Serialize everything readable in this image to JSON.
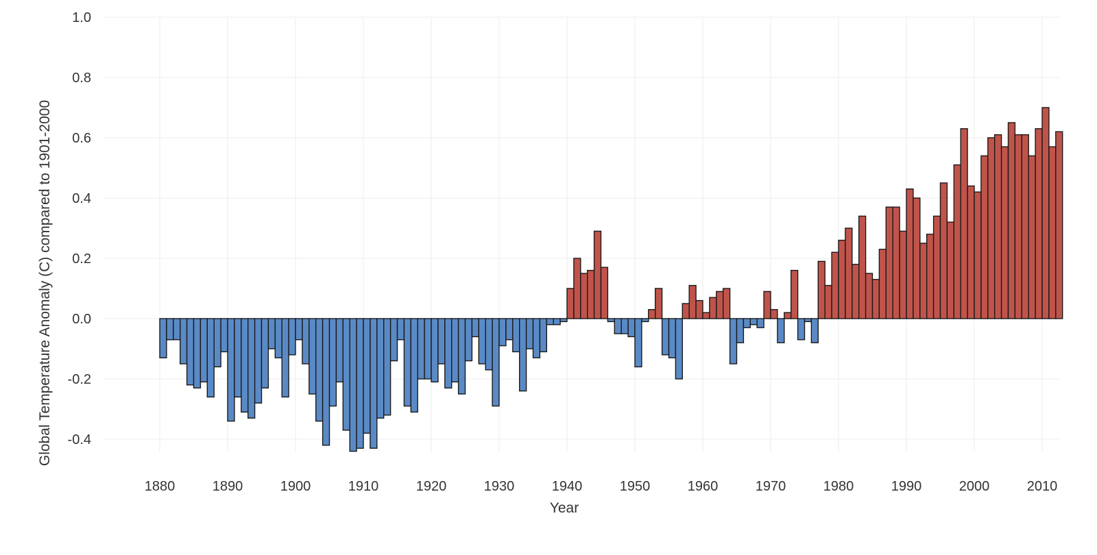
{
  "chart_data": {
    "type": "bar",
    "title": "",
    "xlabel": "Year",
    "ylabel": "Global Temperature Anomaly (C) compared to 1901-2000",
    "xlim": [
      1880,
      2012
    ],
    "ylim": [
      -0.5,
      1.0
    ],
    "grid": true,
    "legend": "none",
    "x_ticks": [
      "1880",
      "1890",
      "1900",
      "1910",
      "1920",
      "1930",
      "1940",
      "1950",
      "1960",
      "1970",
      "1980",
      "1990",
      "2000",
      "2010"
    ],
    "y_ticks": [
      "-0.4",
      "-0.2",
      "0.0",
      "0.2",
      "0.4",
      "0.6",
      "0.8",
      "1.0"
    ],
    "colors": {
      "positive": "#c0544b",
      "negative": "#5a8ac6"
    },
    "x": [
      1880,
      1881,
      1882,
      1883,
      1884,
      1885,
      1886,
      1887,
      1888,
      1889,
      1890,
      1891,
      1892,
      1893,
      1894,
      1895,
      1896,
      1897,
      1898,
      1899,
      1900,
      1901,
      1902,
      1903,
      1904,
      1905,
      1906,
      1907,
      1908,
      1909,
      1910,
      1911,
      1912,
      1913,
      1914,
      1915,
      1916,
      1917,
      1918,
      1919,
      1920,
      1921,
      1922,
      1923,
      1924,
      1925,
      1926,
      1927,
      1928,
      1929,
      1930,
      1931,
      1932,
      1933,
      1934,
      1935,
      1936,
      1937,
      1938,
      1939,
      1940,
      1941,
      1942,
      1943,
      1944,
      1945,
      1946,
      1947,
      1948,
      1949,
      1950,
      1951,
      1952,
      1953,
      1954,
      1955,
      1956,
      1957,
      1958,
      1959,
      1960,
      1961,
      1962,
      1963,
      1964,
      1965,
      1966,
      1967,
      1968,
      1969,
      1970,
      1971,
      1972,
      1973,
      1974,
      1975,
      1976,
      1977,
      1978,
      1979,
      1980,
      1981,
      1982,
      1983,
      1984,
      1985,
      1986,
      1987,
      1988,
      1989,
      1990,
      1991,
      1992,
      1993,
      1994,
      1995,
      1996,
      1997,
      1998,
      1999,
      2000,
      2001,
      2002,
      2003,
      2004,
      2005,
      2006,
      2007,
      2008,
      2009,
      2010,
      2011,
      2012
    ],
    "values": [
      -0.13,
      -0.07,
      -0.07,
      -0.15,
      -0.22,
      -0.23,
      -0.21,
      -0.26,
      -0.16,
      -0.11,
      -0.34,
      -0.26,
      -0.31,
      -0.33,
      -0.28,
      -0.23,
      -0.1,
      -0.13,
      -0.26,
      -0.12,
      -0.07,
      -0.15,
      -0.25,
      -0.34,
      -0.42,
      -0.29,
      -0.21,
      -0.37,
      -0.44,
      -0.43,
      -0.38,
      -0.43,
      -0.33,
      -0.32,
      -0.14,
      -0.07,
      -0.29,
      -0.31,
      -0.2,
      -0.2,
      -0.21,
      -0.15,
      -0.23,
      -0.21,
      -0.25,
      -0.14,
      -0.06,
      -0.15,
      -0.17,
      -0.29,
      -0.09,
      -0.07,
      -0.11,
      -0.24,
      -0.1,
      -0.13,
      -0.11,
      -0.02,
      -0.02,
      -0.01,
      0.1,
      0.2,
      0.15,
      0.16,
      0.29,
      0.17,
      -0.01,
      -0.05,
      -0.05,
      -0.06,
      -0.16,
      -0.01,
      0.03,
      0.1,
      -0.12,
      -0.13,
      -0.2,
      0.05,
      0.11,
      0.06,
      0.02,
      0.07,
      0.09,
      0.1,
      -0.15,
      -0.08,
      -0.03,
      -0.02,
      -0.03,
      0.09,
      0.03,
      -0.08,
      0.02,
      0.16,
      -0.07,
      -0.01,
      -0.08,
      0.19,
      0.11,
      0.22,
      0.26,
      0.3,
      0.18,
      0.34,
      0.15,
      0.13,
      0.23,
      0.37,
      0.37,
      0.29,
      0.43,
      0.4,
      0.25,
      0.28,
      0.34,
      0.45,
      0.32,
      0.51,
      0.63,
      0.44,
      0.42,
      0.54,
      0.6,
      0.61,
      0.57,
      0.65,
      0.61,
      0.61,
      0.54,
      0.63,
      0.7,
      0.57,
      0.62
    ]
  }
}
